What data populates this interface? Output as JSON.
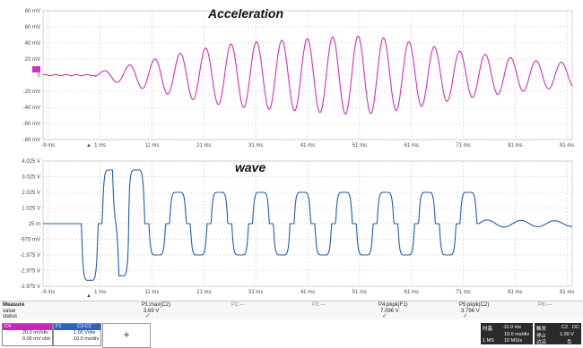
{
  "chart_data": [
    {
      "type": "line",
      "title": "Acceleration",
      "xlabel": "",
      "ylabel": "",
      "x_ticks": [
        "-9 ms",
        "1 ms",
        "11 ms",
        "21 ms",
        "31 ms",
        "41 ms",
        "51 ms",
        "61 ms",
        "71 ms",
        "81 ms",
        "91 ms"
      ],
      "y_ticks": [
        "80 mV",
        "60 mV",
        "40 mV",
        "20 mV",
        "0",
        "-20 mV",
        "-40 mV",
        "-60 mV",
        "-80 mV"
      ],
      "xlim": [
        -10,
        92
      ],
      "ylim": [
        -80,
        80
      ],
      "grid": true,
      "series": [
        {
          "color": "#cc33b8",
          "quiet_until_ms": 0,
          "start_ms": 0.5,
          "period_ms": 4.9,
          "offset_mV": 0,
          "amplitude_peaks_mV": [
            [
              0,
              3
            ],
            [
              5,
              10
            ],
            [
              10,
              18
            ],
            [
              15,
              25
            ],
            [
              20,
              32
            ],
            [
              25,
              38
            ],
            [
              30,
              41
            ],
            [
              35,
              43
            ],
            [
              40,
              45
            ],
            [
              45,
              47
            ],
            [
              50,
              49
            ],
            [
              55,
              47
            ],
            [
              60,
              42
            ],
            [
              65,
              36
            ],
            [
              70,
              30
            ],
            [
              75,
              26
            ],
            [
              80,
              22
            ],
            [
              85,
              18
            ],
            [
              90,
              16
            ],
            [
              92,
              15
            ]
          ]
        }
      ]
    },
    {
      "type": "line",
      "title": "wave",
      "xlabel": "",
      "ylabel": "",
      "x_ticks": [
        "-9 ms",
        "1 ms",
        "11 ms",
        "21 ms",
        "31 ms",
        "41 ms",
        "51 ms",
        "61 ms",
        "71 ms",
        "81 ms",
        "91 ms"
      ],
      "y_ticks": [
        "4.025 V",
        "3.025 V",
        "2.025 V",
        "1.025 V",
        "25 m",
        "-975 mV",
        "-1.975 V",
        "-2.975 V",
        "-3.975 V"
      ],
      "xlim": [
        -10,
        92
      ],
      "ylim": [
        -4.2,
        4.2
      ],
      "grid": true,
      "series": [
        {
          "color": "#1f5fb0",
          "bursts_V": [
            [
              -1,
              -3.8
            ],
            [
              3,
              3.6
            ],
            [
              5,
              -3.5
            ],
            [
              8,
              3.6
            ],
            [
              12,
              -2.1
            ],
            [
              16,
              2.1
            ],
            [
              20,
              -2.1
            ],
            [
              24,
              2.1
            ],
            [
              28,
              -2.1
            ],
            [
              32,
              2.1
            ],
            [
              36,
              -2.1
            ],
            [
              40,
              2.1
            ],
            [
              44,
              -2.1
            ],
            [
              48,
              2.1
            ],
            [
              52,
              -2.1
            ],
            [
              56,
              2.1
            ],
            [
              60,
              -2.1
            ],
            [
              64,
              2.1
            ],
            [
              68,
              -2.1
            ],
            [
              72,
              2.1
            ]
          ],
          "ring_amplitude_V": 0.25,
          "ring_end_ms": 92
        }
      ]
    }
  ],
  "measure": {
    "row_labels": [
      "Measure",
      "value",
      "status"
    ],
    "columns": [
      {
        "name": "P1:max(C2)",
        "value": "3.69 V",
        "ok": true
      },
      {
        "name": "P2:---",
        "value": "",
        "ok": false
      },
      {
        "name": "P3:---",
        "value": "",
        "ok": false
      },
      {
        "name": "P4:pkpk(F1)",
        "value": "7.096 V",
        "ok": true
      },
      {
        "name": "P5:pkpk(C2)",
        "value": "3.796 V",
        "ok": true
      },
      {
        "name": "P6:---",
        "value": "",
        "ok": false
      }
    ],
    "check_mark": "✓"
  },
  "footer": {
    "channels": [
      {
        "label": "C4",
        "color": "#d21fc0",
        "scale": "20.0 mV/div",
        "offset": "0.00 mV ofst"
      },
      {
        "label": "F1",
        "color": "#2d62c4",
        "formula": "C3-C2",
        "scale": "1.00 V/div",
        "time": "10.0 ms/div"
      }
    ],
    "add_label": "+",
    "timebase": {
      "label": "时基",
      "delay": "-11.0 ms",
      "label2": "触发",
      "trig_ch": "C2",
      "dc": "DC",
      "tdiv": "10.0 ms/div",
      "mode_label": "停止",
      "level": "1.00 V",
      "samples": "1 MS",
      "rate": "10 MS/s",
      "edge_label": "边沿",
      "slope": "负"
    }
  },
  "colors": {
    "accel": "#cc33b8",
    "wave": "#1f5fb0",
    "grid": "#c9c9c9"
  }
}
